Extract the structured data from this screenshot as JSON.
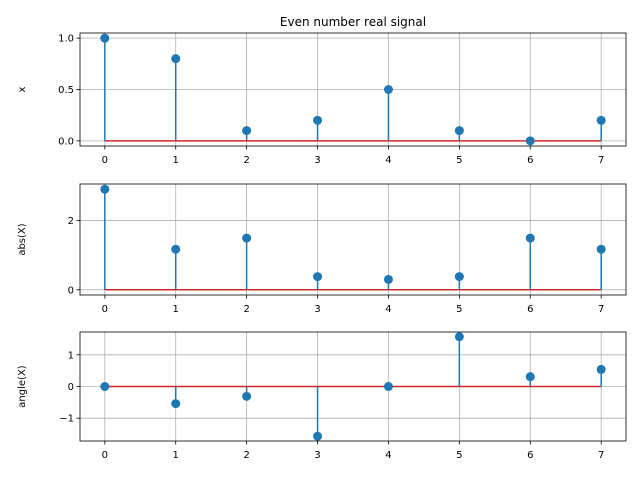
{
  "chart_data": [
    {
      "type": "stem",
      "title": "Even number real signal",
      "ylabel": "x",
      "xlabel": "",
      "x": [
        0,
        1,
        2,
        3,
        4,
        5,
        6,
        7
      ],
      "values": [
        1.0,
        0.8,
        0.1,
        0.2,
        0.5,
        0.1,
        0.0,
        0.2
      ],
      "xlim": [
        -0.35,
        7.35
      ],
      "ylim": [
        -0.05,
        1.05
      ],
      "xticks": [
        0,
        1,
        2,
        3,
        4,
        5,
        6,
        7
      ],
      "yticks": [
        0.0,
        0.5,
        1.0
      ],
      "ytick_labels": [
        "0.0",
        "0.5",
        "1.0"
      ],
      "grid": true
    },
    {
      "type": "stem",
      "title": "",
      "ylabel": "abs(X)",
      "xlabel": "",
      "x": [
        0,
        1,
        2,
        3,
        4,
        5,
        6,
        7
      ],
      "values": [
        2.9,
        1.17,
        1.49,
        0.38,
        0.3,
        0.38,
        1.49,
        1.17
      ],
      "xlim": [
        -0.35,
        7.35
      ],
      "ylim": [
        -0.15,
        3.05
      ],
      "xticks": [
        0,
        1,
        2,
        3,
        4,
        5,
        6,
        7
      ],
      "yticks": [
        0,
        2
      ],
      "ytick_labels": [
        "0",
        "2"
      ],
      "grid": true
    },
    {
      "type": "stem",
      "title": "",
      "ylabel": "angle(X)",
      "xlabel": "",
      "x": [
        0,
        1,
        2,
        3,
        4,
        5,
        6,
        7
      ],
      "values": [
        0.0,
        -0.54,
        -0.31,
        -1.57,
        0.0,
        1.57,
        0.31,
        0.54
      ],
      "xlim": [
        -0.35,
        7.35
      ],
      "ylim": [
        -1.72,
        1.72
      ],
      "xticks": [
        0,
        1,
        2,
        3,
        4,
        5,
        6,
        7
      ],
      "yticks": [
        -1,
        0,
        1
      ],
      "ytick_labels": [
        "−1",
        "0",
        "1"
      ],
      "grid": true
    }
  ],
  "colors": {
    "stem": "#1f77b4",
    "marker": "#1f77b4",
    "baseline": "#d62728",
    "grid": "#b0b0b0"
  }
}
